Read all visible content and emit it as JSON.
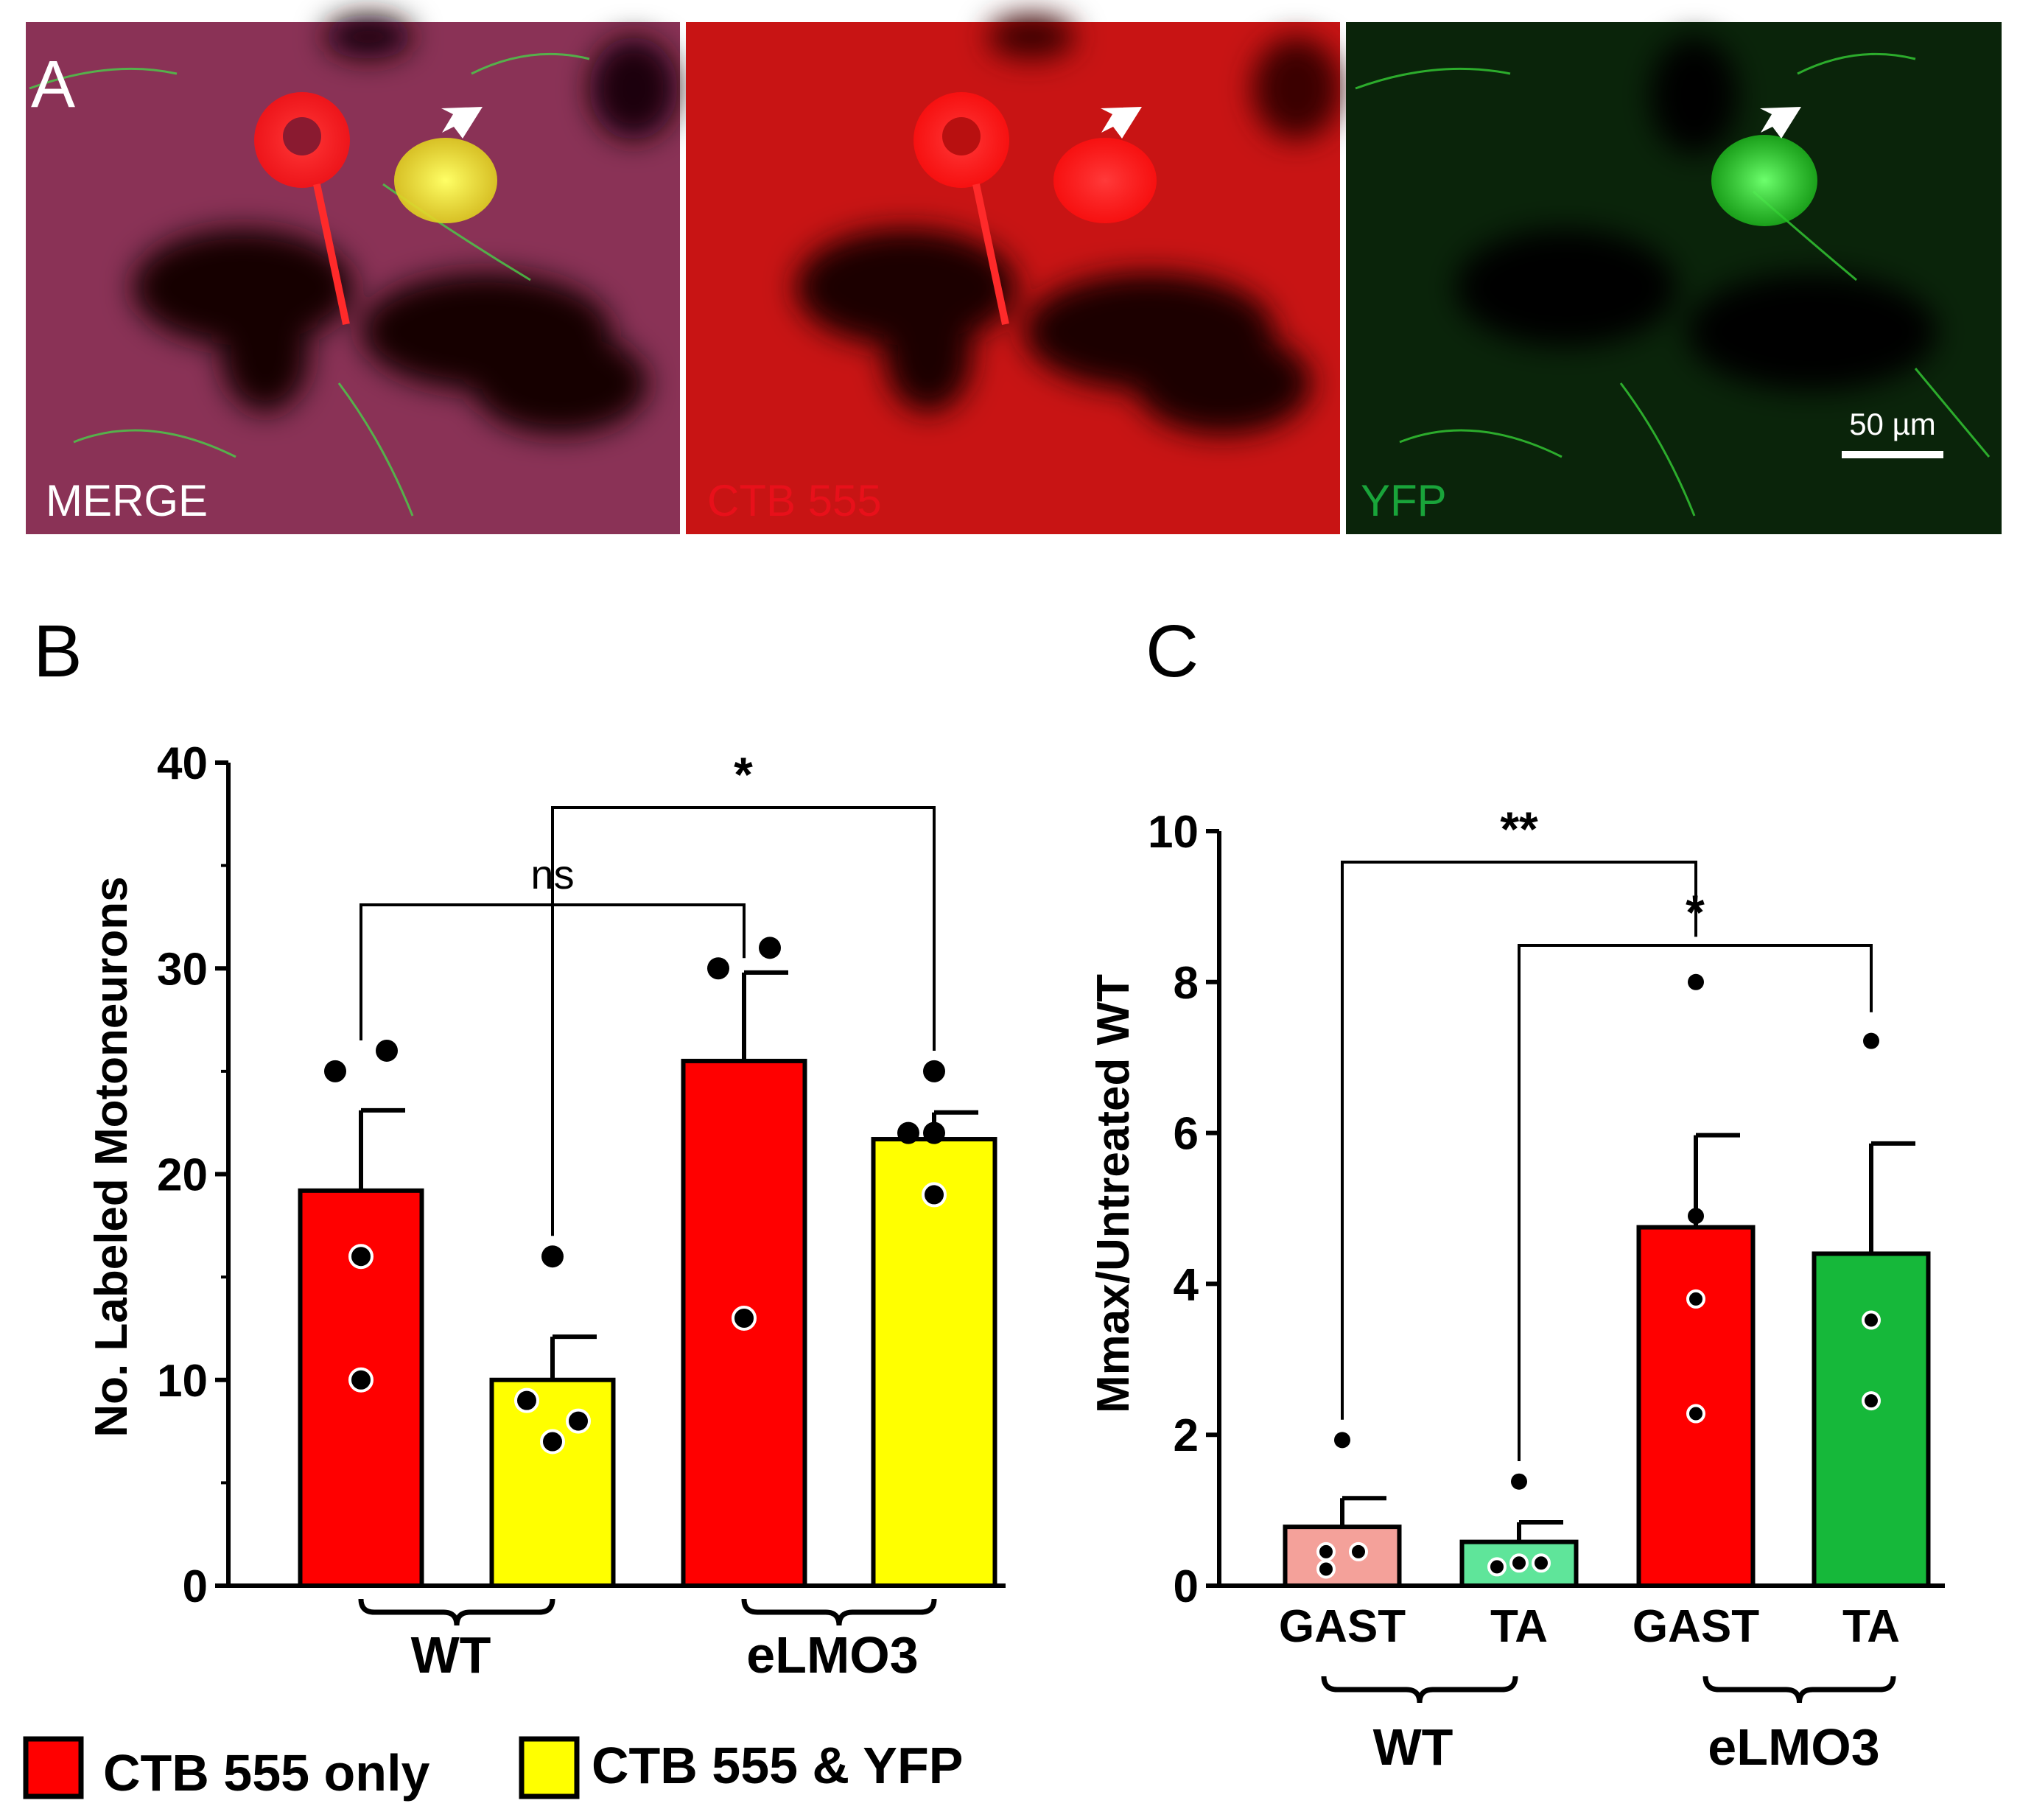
{
  "panel_a": {
    "label": "A",
    "subpanels": [
      {
        "caption": "MERGE",
        "caption_color": "#ffffff",
        "channel": "merge"
      },
      {
        "caption": "CTB 555",
        "caption_color": "#e8101a",
        "channel": "red"
      },
      {
        "caption": "YFP",
        "caption_color": "#19a43a",
        "channel": "green"
      }
    ],
    "scale_bar_label": "50 µm",
    "arrow_icon": "down-left-arrow-icon"
  },
  "colors": {
    "ctb_only": "#ff0000",
    "ctb_yfp": "#ffff00",
    "wt_gast": "#f4a19a",
    "wt_ta": "#5fe59a",
    "elmo3_gast": "#ff0000",
    "elmo3_ta": "#16b83a"
  },
  "chart_data": [
    {
      "panel": "B",
      "type": "bar",
      "ylabel": "No. Labeled Motoneurons",
      "ylim": [
        0,
        40
      ],
      "yticks": [
        0,
        10,
        20,
        30,
        40
      ],
      "groups": [
        "WT",
        "eLMO3"
      ],
      "bars": [
        {
          "group": "WT",
          "series": "CTB 555 only",
          "value": 19.2,
          "sem": 3.9,
          "points": [
            25,
            26,
            16,
            10
          ]
        },
        {
          "group": "WT",
          "series": "CTB 555 & YFP",
          "value": 10.0,
          "sem": 2.1,
          "points": [
            16,
            9,
            8,
            7
          ]
        },
        {
          "group": "eLMO3",
          "series": "CTB 555 only",
          "value": 25.5,
          "sem": 4.3,
          "points": [
            30,
            31,
            13
          ]
        },
        {
          "group": "eLMO3",
          "series": "CTB 555 & YFP",
          "value": 21.7,
          "sem": 1.3,
          "points": [
            25,
            22,
            22,
            19
          ]
        }
      ],
      "comparisons": [
        {
          "from_bar": 0,
          "to_bar": 2,
          "label": "ns"
        },
        {
          "from_bar": 1,
          "to_bar": 3,
          "label": "*"
        }
      ],
      "legend": [
        {
          "label": "CTB 555 only",
          "color": "#ff0000"
        },
        {
          "label": "CTB 555 & YFP",
          "color": "#ffff00"
        }
      ]
    },
    {
      "panel": "C",
      "type": "bar",
      "ylabel": "Mmax/Untreated  WT",
      "ylim": [
        0,
        10
      ],
      "yticks": [
        0,
        2,
        4,
        6,
        8,
        10
      ],
      "groups": [
        "WT",
        "eLMO3"
      ],
      "bars": [
        {
          "group": "WT",
          "category": "GAST",
          "value": 0.78,
          "sem": 0.38,
          "points": [
            1.93,
            0.45,
            0.45,
            0.22
          ]
        },
        {
          "group": "WT",
          "category": "TA",
          "value": 0.58,
          "sem": 0.26,
          "points": [
            1.38,
            0.3,
            0.3,
            0.25
          ]
        },
        {
          "group": "eLMO3",
          "category": "GAST",
          "value": 4.75,
          "sem": 1.22,
          "points": [
            8.0,
            4.9,
            3.8,
            2.28
          ]
        },
        {
          "group": "eLMO3",
          "category": "TA",
          "value": 4.4,
          "sem": 1.46,
          "points": [
            7.22,
            3.52,
            2.45
          ]
        }
      ],
      "comparisons": [
        {
          "from_bar": 0,
          "to_bar": 2,
          "label": "**"
        },
        {
          "from_bar": 1,
          "to_bar": 3,
          "label": "*"
        }
      ]
    }
  ]
}
